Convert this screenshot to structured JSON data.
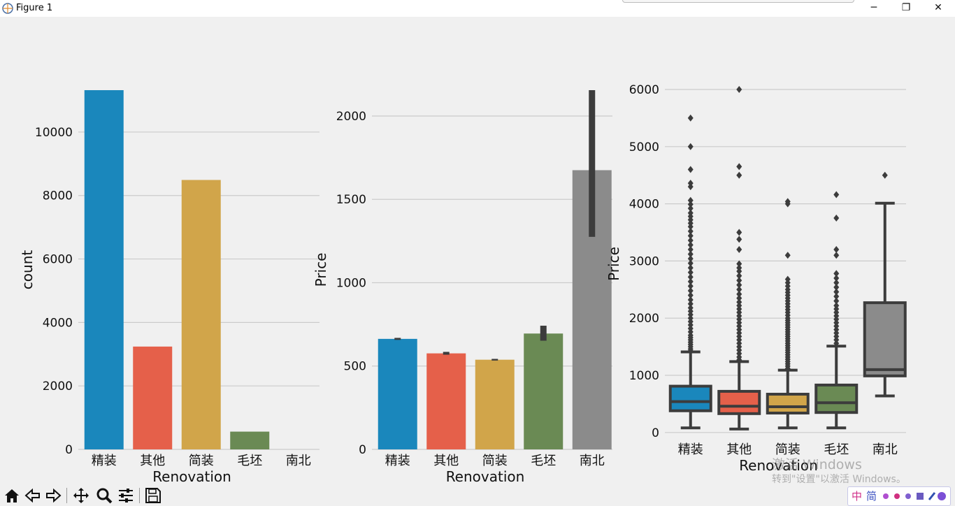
{
  "window": {
    "title": "Figure 1",
    "controls": {
      "minimize": "─",
      "maximize": "❐",
      "close": "✕"
    }
  },
  "toolbar": {
    "buttons": [
      "home-icon",
      "back-icon",
      "forward-icon",
      "pan-icon",
      "zoom-icon",
      "configure-icon",
      "save-icon"
    ]
  },
  "watermark": {
    "line1": "激活 Windows",
    "line2": "转到\"设置\"以激活 Windows。"
  },
  "ime": {
    "chars": [
      "中",
      "简"
    ]
  },
  "colors": {
    "blue": "#1a87bc",
    "red": "#e5604a",
    "gold": "#d1a54a",
    "green": "#6a8a54",
    "gray": "#8b8b8b",
    "dark": "#3c3c3c",
    "grid": "#cbcbcb"
  },
  "chart_data": [
    {
      "type": "bar",
      "xlabel": "Renovation",
      "ylabel": "count",
      "categories": [
        "精装",
        "其他",
        "简装",
        "毛坯",
        "南北"
      ],
      "values": [
        11320,
        3240,
        8490,
        560,
        0
      ],
      "ylim": [
        0,
        11320
      ],
      "yticks": [
        0,
        2000,
        4000,
        6000,
        8000,
        10000
      ],
      "grid": "y"
    },
    {
      "type": "bar",
      "xlabel": "Renovation",
      "ylabel": "Price",
      "categories": [
        "精装",
        "其他",
        "简装",
        "毛坯",
        "南北"
      ],
      "values": [
        663,
        576,
        538,
        695,
        1675
      ],
      "ci": [
        [
          657,
          669
        ],
        [
          568,
          585
        ],
        [
          533,
          543
        ],
        [
          652,
          742
        ],
        [
          1275,
          2155
        ]
      ],
      "ylim": [
        0,
        2155
      ],
      "yticks": [
        0,
        500,
        1000,
        1500,
        2000
      ],
      "grid": "y"
    },
    {
      "type": "box",
      "xlabel": "Renovation",
      "ylabel": "Price",
      "categories": [
        "精装",
        "其他",
        "简装",
        "毛坯",
        "南北"
      ],
      "boxes": [
        {
          "whislo": 80,
          "q1": 380,
          "med": 540,
          "q3": 810,
          "whishi": 1410,
          "fliers": [
            1430,
            1460,
            1500,
            1540,
            1580,
            1620,
            1660,
            1700,
            1760,
            1820,
            1880,
            1940,
            2000,
            2060,
            2120,
            2180,
            2250,
            2320,
            2400,
            2480,
            2560,
            2640,
            2720,
            2800,
            2880,
            2960,
            3040,
            3120,
            3200,
            3280,
            3360,
            3440,
            3520,
            3600,
            3660,
            3720,
            3780,
            3840,
            3920,
            3990,
            4060,
            4300,
            4360,
            4600,
            5000,
            5500
          ]
        },
        {
          "whislo": 60,
          "q1": 330,
          "med": 460,
          "q3": 720,
          "whishi": 1240,
          "fliers": [
            1270,
            1320,
            1380,
            1440,
            1500,
            1560,
            1620,
            1680,
            1740,
            1800,
            1860,
            1920,
            1980,
            2040,
            2100,
            2160,
            2220,
            2280,
            2350,
            2420,
            2500,
            2580,
            2660,
            2740,
            2820,
            2880,
            2950,
            3200,
            3380,
            3500,
            4500,
            4650,
            6000
          ]
        },
        {
          "whislo": 80,
          "q1": 340,
          "med": 450,
          "q3": 670,
          "whishi": 1090,
          "fliers": [
            1120,
            1160,
            1200,
            1240,
            1280,
            1320,
            1360,
            1400,
            1440,
            1480,
            1520,
            1560,
            1600,
            1640,
            1680,
            1720,
            1760,
            1800,
            1840,
            1880,
            1920,
            1960,
            2000,
            2050,
            2100,
            2150,
            2200,
            2250,
            2300,
            2350,
            2400,
            2450,
            2500,
            2560,
            2620,
            2680,
            3100,
            4000,
            4040
          ]
        },
        {
          "whislo": 80,
          "q1": 350,
          "med": 520,
          "q3": 830,
          "whishi": 1510,
          "fliers": [
            1560,
            1620,
            1680,
            1740,
            1800,
            1860,
            1920,
            1980,
            2040,
            2100,
            2160,
            2220,
            2300,
            2380,
            2460,
            2540,
            2620,
            2700,
            2780,
            3100,
            3200,
            3750,
            4160
          ]
        },
        {
          "whislo": 640,
          "q1": 990,
          "med": 1100,
          "q3": 2270,
          "whishi": 4010,
          "fliers": [
            4500
          ]
        }
      ],
      "ylim": [
        -100,
        6000
      ],
      "yticks": [
        0,
        1000,
        2000,
        3000,
        4000,
        5000,
        6000
      ],
      "grid": "y"
    }
  ]
}
